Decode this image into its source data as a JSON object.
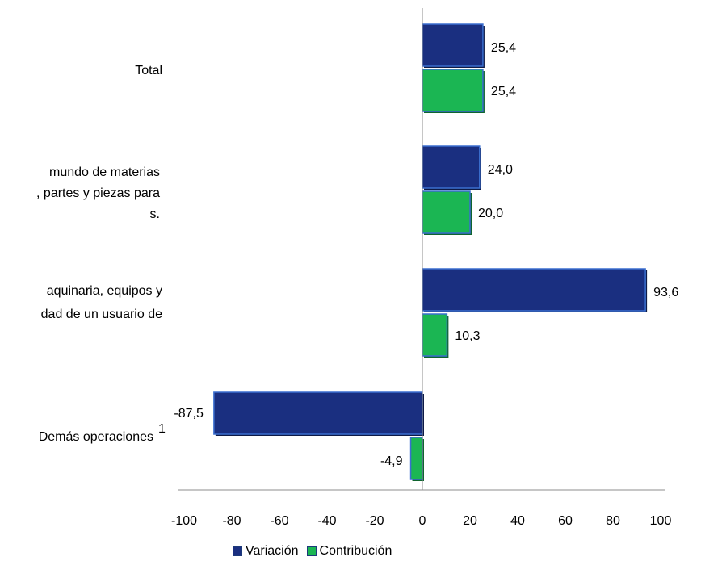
{
  "chart_data": {
    "type": "bar",
    "orientation": "horizontal",
    "categories": [
      {
        "lines": [
          "Total"
        ]
      },
      {
        "lines": [
          "mundo de materias",
          ", partes y piezas para",
          "s."
        ]
      },
      {
        "lines": [
          "aquinaria, equipos y",
          "dad de un usuario de"
        ]
      },
      {
        "lines": [
          "Demás operaciones"
        ],
        "superscript": "1"
      }
    ],
    "series": [
      {
        "name": "Variación",
        "color": "#1a2f80",
        "values": [
          25.4,
          24.0,
          93.6,
          -87.5
        ],
        "labels": [
          "25,4",
          "24,0",
          "93,6",
          "-87,5"
        ]
      },
      {
        "name": "Contribución",
        "color": "#1bb653",
        "values": [
          25.4,
          20.0,
          10.3,
          -4.9
        ],
        "labels": [
          "25,4",
          "20,0",
          "10,3",
          "-4,9"
        ]
      }
    ],
    "xlim": [
      -100,
      100
    ],
    "xticks": [
      "-100",
      "-80",
      "-60",
      "-40",
      "-20",
      "0",
      "20",
      "40",
      "60",
      "80",
      "100"
    ],
    "grid": false,
    "legend_position": "bottom"
  }
}
